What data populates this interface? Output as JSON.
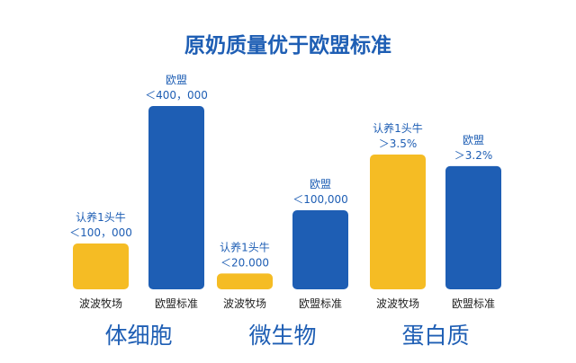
{
  "chart_data": {
    "type": "bar",
    "title": "原奶质量优于欧盟标准",
    "colors": {
      "farm": "#F5BC24",
      "eu": "#1E5EB4",
      "title": "#1E5EB4",
      "group_label": "#1E5EB4",
      "annotation": "#1E5EB4",
      "axis_label": "#222222"
    },
    "series_labels": [
      "波波牧场",
      "欧盟标准"
    ],
    "groups": [
      {
        "name": "体细胞",
        "bars": [
          {
            "series": "波波牧场",
            "value": 100000,
            "annotation": [
              "认养1头牛",
              "＜100，000"
            ]
          },
          {
            "series": "欧盟标准",
            "value": 400000,
            "annotation": [
              "欧盟",
              "＜400，000"
            ]
          }
        ]
      },
      {
        "name": "微生物",
        "bars": [
          {
            "series": "波波牧场",
            "value": 20000,
            "annotation": [
              "认养1头牛",
              "＜20.000"
            ]
          },
          {
            "series": "欧盟标准",
            "value": 100000,
            "annotation": [
              "欧盟",
              "＜100,000"
            ]
          }
        ]
      },
      {
        "name": "蛋白质",
        "bars": [
          {
            "series": "波波牧场",
            "value": 3.5,
            "annotation": [
              "认养1头牛",
              "＞3.5%"
            ]
          },
          {
            "series": "欧盟标准",
            "value": 3.2,
            "annotation": [
              "欧盟",
              "＞3.2%"
            ]
          }
        ]
      }
    ]
  }
}
